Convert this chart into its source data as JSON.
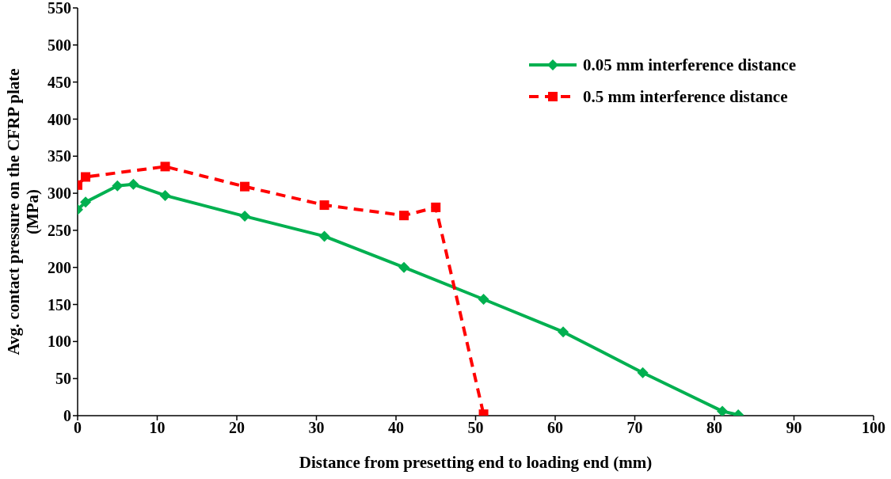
{
  "chart_data": {
    "type": "line",
    "xlabel": "Distance from presetting end to loading end (mm)",
    "ylabel": "Avg. contact pressure on the CFRP plate (MPa)",
    "xlim": [
      0,
      100
    ],
    "xticks": [
      0,
      10,
      20,
      30,
      40,
      50,
      60,
      70,
      80,
      90,
      100
    ],
    "ylim": [
      0,
      550
    ],
    "yticks": [
      0,
      50,
      100,
      150,
      200,
      250,
      300,
      350,
      400,
      450,
      500,
      550
    ],
    "grid": false,
    "legend": "top right",
    "series": [
      {
        "name": "0.05 mm interference distance",
        "color": "#00b050",
        "marker": "diamond",
        "line_style": "solid",
        "x": [
          0,
          1,
          5,
          7,
          11,
          21,
          31,
          41,
          51,
          61,
          71,
          81,
          83
        ],
        "values": [
          278,
          288,
          310,
          312,
          297,
          269,
          242,
          200,
          157,
          113,
          58,
          6,
          1
        ]
      },
      {
        "name": "0.5 mm interference distance",
        "color": "#ff0000",
        "marker": "square",
        "line_style": "dashed",
        "x": [
          0,
          1,
          11,
          21,
          31,
          41,
          45,
          51
        ],
        "values": [
          311,
          322,
          336,
          309,
          284,
          270,
          281,
          2
        ]
      }
    ]
  }
}
